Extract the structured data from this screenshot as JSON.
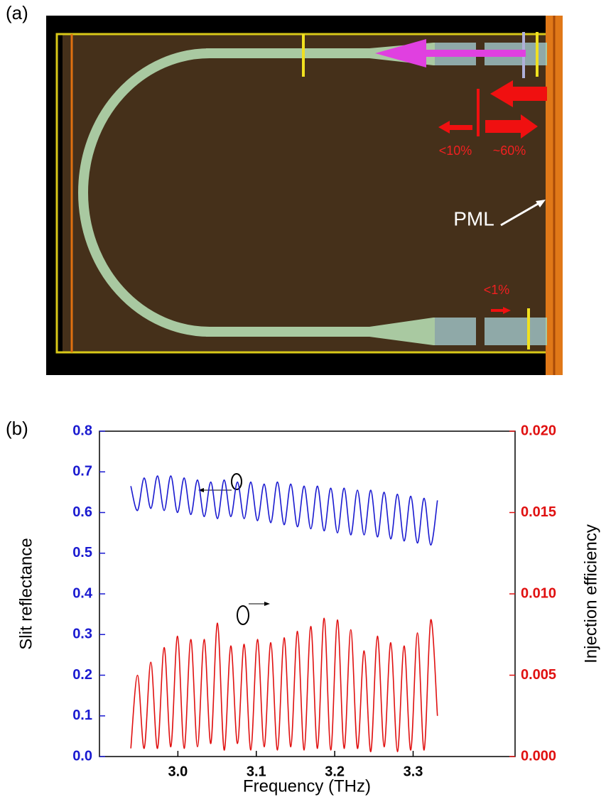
{
  "panel_a": {
    "label": "(a)",
    "reflect_label": "<10%",
    "transmit_label": "~60%",
    "pml_label": "PML",
    "leak_label": "<1%"
  },
  "chart_data": {
    "type": "line",
    "label": "(b)",
    "x_label": "Frequency (THz)",
    "y_label": "Slit reflectance",
    "y2_label": "Injection efficiency",
    "x": [
      2.94,
      2.9485,
      2.957,
      2.9655,
      2.974,
      2.9825,
      2.991,
      2.9995,
      3.008,
      3.0165,
      3.025,
      3.0335,
      3.042,
      3.0505,
      3.059,
      3.0675,
      3.076,
      3.0845,
      3.093,
      3.1015,
      3.11,
      3.1185,
      3.127,
      3.1355,
      3.144,
      3.1525,
      3.161,
      3.1695,
      3.178,
      3.1865,
      3.195,
      3.2035,
      3.212,
      3.2205,
      3.229,
      3.2375,
      3.246,
      3.2545,
      3.263,
      3.2715,
      3.28,
      3.2885,
      3.297,
      3.3055,
      3.314,
      3.3225,
      3.331
    ],
    "series": [
      {
        "color": "#1a1ad0",
        "axis": "y",
        "values": [
          0.665,
          0.605,
          0.685,
          0.61,
          0.69,
          0.605,
          0.69,
          0.6,
          0.685,
          0.595,
          0.68,
          0.59,
          0.675,
          0.585,
          0.68,
          0.59,
          0.675,
          0.585,
          0.675,
          0.58,
          0.67,
          0.575,
          0.675,
          0.57,
          0.67,
          0.565,
          0.665,
          0.56,
          0.665,
          0.555,
          0.66,
          0.55,
          0.66,
          0.545,
          0.655,
          0.545,
          0.655,
          0.54,
          0.65,
          0.535,
          0.645,
          0.53,
          0.64,
          0.525,
          0.635,
          0.52,
          0.63
        ]
      },
      {
        "color": "#e01010",
        "axis": "y2",
        "values": [
          0.0005,
          0.005,
          0.0005,
          0.0058,
          0.0005,
          0.0067,
          0.0006,
          0.0074,
          0.0005,
          0.0072,
          0.0006,
          0.0072,
          0.0008,
          0.0082,
          0.0004,
          0.0068,
          0.0008,
          0.0069,
          0.0004,
          0.0072,
          0.0006,
          0.007,
          0.0004,
          0.0073,
          0.0006,
          0.0077,
          0.0004,
          0.008,
          0.0005,
          0.0085,
          0.0004,
          0.0084,
          0.0005,
          0.0078,
          0.0005,
          0.0065,
          0.0003,
          0.0074,
          0.0006,
          0.007,
          0.0003,
          0.0068,
          0.0004,
          0.0076,
          0.0004,
          0.0084,
          0.0025
        ]
      }
    ],
    "xlim": [
      2.9,
      3.43
    ],
    "xticks": [
      {
        "value": 3,
        "label": "3.0"
      },
      3.1,
      3.2,
      3.3
    ],
    "ylim": [
      0,
      0.8
    ],
    "yticks": [
      {
        "value": 0,
        "label": "0.0"
      },
      0.1,
      0.2,
      0.3,
      0.4,
      0.5,
      0.6,
      0.7,
      0.8
    ],
    "y2lim": [
      0,
      0.02
    ],
    "y2ticks": [
      {
        "value": 0,
        "label": "0.000"
      },
      {
        "value": 0.005,
        "label": "0.005"
      },
      {
        "value": 0.01,
        "label": "0.010"
      },
      {
        "value": 0.015,
        "label": "0.015"
      },
      {
        "value": 0.02,
        "label": "0.020"
      }
    ],
    "y_color": "#1a1ad0",
    "y2_color": "#e01010"
  }
}
